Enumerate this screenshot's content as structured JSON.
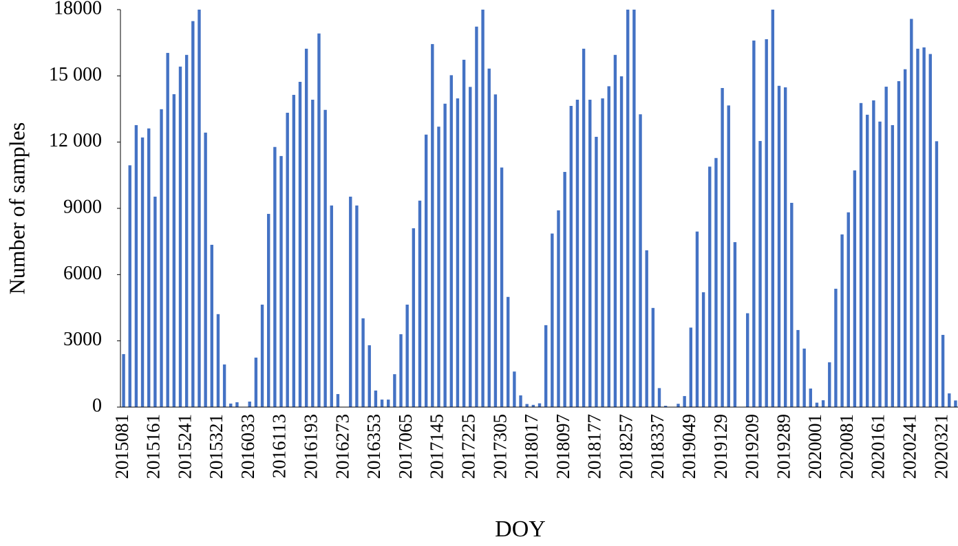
{
  "chart_data": {
    "type": "bar",
    "x_label": "DOY",
    "y_label": "Number of samples",
    "color": "#4472c4",
    "categories": [
      "2015081",
      null,
      null,
      null,
      null,
      "2015161",
      null,
      null,
      null,
      null,
      "2015241",
      null,
      null,
      null,
      null,
      "2015321",
      null,
      null,
      null,
      null,
      "2016033",
      null,
      null,
      null,
      null,
      "2016113",
      null,
      null,
      null,
      null,
      "2016193",
      null,
      null,
      null,
      null,
      "2016273",
      null,
      null,
      null,
      null,
      "2016353",
      null,
      null,
      null,
      null,
      "2017065",
      null,
      null,
      null,
      null,
      "2017145",
      null,
      null,
      null,
      null,
      "2017225",
      null,
      null,
      null,
      null,
      "2017305",
      null,
      null,
      null,
      null,
      "2018017",
      null,
      null,
      null,
      null,
      "2018097",
      null,
      null,
      null,
      null,
      "2018177",
      null,
      null,
      null,
      null,
      "2018257",
      null,
      null,
      null,
      null,
      "2018337",
      null,
      null,
      null,
      null,
      "2019049",
      null,
      null,
      null,
      null,
      "2019129",
      null,
      null,
      null,
      null,
      "2019209",
      null,
      null,
      null,
      null,
      "2019289",
      null,
      null,
      null,
      null,
      "2020001",
      null,
      null,
      null,
      null,
      "2020081",
      null,
      null,
      null,
      null,
      "2020161",
      null,
      null,
      null,
      null,
      "2020241",
      null,
      null,
      null,
      null,
      "2020321",
      null,
      null
    ],
    "values": [
      2400,
      10950,
      12770,
      12210,
      12620,
      9530,
      13490,
      16040,
      14170,
      15420,
      15950,
      17480,
      18000,
      12430,
      7350,
      4210,
      1930,
      160,
      220,
      0,
      250,
      2240,
      4640,
      8750,
      11780,
      11370,
      13330,
      14140,
      14730,
      16230,
      13920,
      16920,
      13460,
      9130,
      590,
      0,
      9530,
      9130,
      4020,
      2800,
      750,
      340,
      340,
      1490,
      3300,
      4640,
      8100,
      9350,
      12340,
      16440,
      12700,
      13740,
      15030,
      13980,
      15730,
      14500,
      17230,
      18000,
      15330,
      14160,
      10850,
      4990,
      1610,
      530,
      140,
      100,
      170,
      3710,
      7860,
      8910,
      10650,
      13640,
      13920,
      16230,
      13920,
      12240,
      13980,
      14530,
      15950,
      14980,
      18000,
      18000,
      13260,
      7100,
      4490,
      860,
      60,
      0,
      150,
      500,
      3600,
      7950,
      5200,
      10890,
      11280,
      14450,
      13660,
      7470,
      0,
      4250,
      16600,
      12050,
      16660,
      18000,
      14550,
      14480,
      9250,
      3490,
      2650,
      840,
      200,
      310,
      2030,
      5360,
      7820,
      8820,
      10720,
      13770,
      13240,
      13890,
      12930,
      14510,
      12770,
      14760,
      15300,
      17580,
      16230,
      16290,
      15990,
      12040,
      3270,
      620,
      300
    ],
    "ylim": [
      0,
      18000
    ],
    "yticks": [
      0,
      3000,
      6000,
      9000,
      {
        "value": 12000,
        "label": "12 000"
      },
      {
        "value": 15000,
        "label": "15 000"
      },
      18000
    ],
    "grid": false
  }
}
